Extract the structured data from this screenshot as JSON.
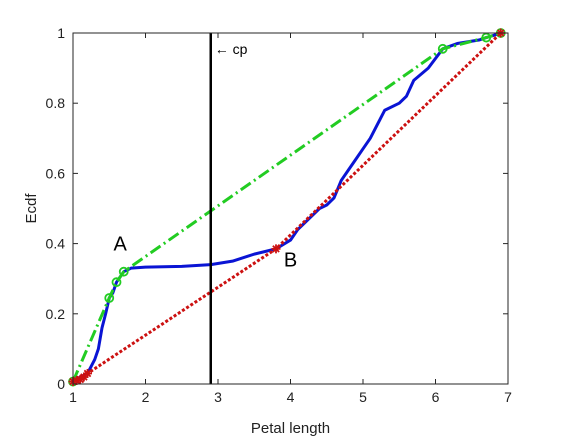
{
  "chart_data": {
    "type": "line",
    "title": "",
    "xlabel": "Petal length",
    "ylabel": "Ecdf",
    "xlim": [
      1,
      7
    ],
    "ylim": [
      0,
      1
    ],
    "xticks": [
      "1",
      "2",
      "3",
      "4",
      "5",
      "6",
      "7"
    ],
    "yticks": [
      "0",
      "0.2",
      "0.4",
      "0.6",
      "0.8",
      "1"
    ],
    "grid": false,
    "legend": "none",
    "series": [
      {
        "style": "solid",
        "color": "#0a14d4",
        "x": [
          1.0,
          1.05,
          1.1,
          1.2,
          1.3,
          1.35,
          1.4,
          1.45,
          1.5,
          1.55,
          1.6,
          1.65,
          1.7,
          1.8,
          2.0,
          2.5,
          2.9,
          3.2,
          3.5,
          3.8,
          4.0,
          4.1,
          4.2,
          4.3,
          4.4,
          4.5,
          4.6,
          4.7,
          4.8,
          4.9,
          5.0,
          5.1,
          5.3,
          5.5,
          5.6,
          5.7,
          5.9,
          6.1,
          6.3,
          6.6,
          6.7,
          6.8,
          6.9
        ],
        "y": [
          0.007,
          0.013,
          0.02,
          0.03,
          0.07,
          0.1,
          0.16,
          0.2,
          0.245,
          0.26,
          0.29,
          0.305,
          0.32,
          0.33,
          0.333,
          0.335,
          0.34,
          0.35,
          0.37,
          0.385,
          0.41,
          0.44,
          0.46,
          0.48,
          0.5,
          0.51,
          0.53,
          0.58,
          0.61,
          0.64,
          0.67,
          0.7,
          0.78,
          0.8,
          0.82,
          0.865,
          0.9,
          0.955,
          0.97,
          0.98,
          0.987,
          0.993,
          1.0
        ]
      },
      {
        "style": "dash-dot",
        "color": "#22cc22",
        "marker": "circle",
        "x": [
          1.0,
          1.5,
          1.6,
          1.7,
          6.1,
          6.7,
          6.9
        ],
        "y": [
          0.007,
          0.245,
          0.29,
          0.32,
          0.955,
          0.987,
          1.0
        ],
        "marker_x": [
          1.0,
          1.5,
          1.6,
          1.7,
          6.1,
          6.7,
          6.9
        ],
        "marker_y": [
          0.007,
          0.245,
          0.29,
          0.32,
          0.955,
          0.987,
          1.0
        ]
      },
      {
        "style": "dotted",
        "color": "#cc1111",
        "marker": "star",
        "x": [
          1.0,
          1.2,
          3.8,
          6.9
        ],
        "y": [
          0.007,
          0.03,
          0.385,
          1.0
        ],
        "marker_x": [
          1.0,
          1.05,
          1.1,
          1.15,
          1.2,
          3.8,
          6.9
        ],
        "marker_y": [
          0.007,
          0.01,
          0.013,
          0.02,
          0.03,
          0.385,
          1.0
        ]
      }
    ],
    "vertical_line": {
      "x": 2.9,
      "label": "← cp"
    },
    "annotations": [
      {
        "text": "A",
        "x": 1.65,
        "y": 0.38
      },
      {
        "text": "B",
        "x": 4.0,
        "y": 0.335
      }
    ]
  }
}
